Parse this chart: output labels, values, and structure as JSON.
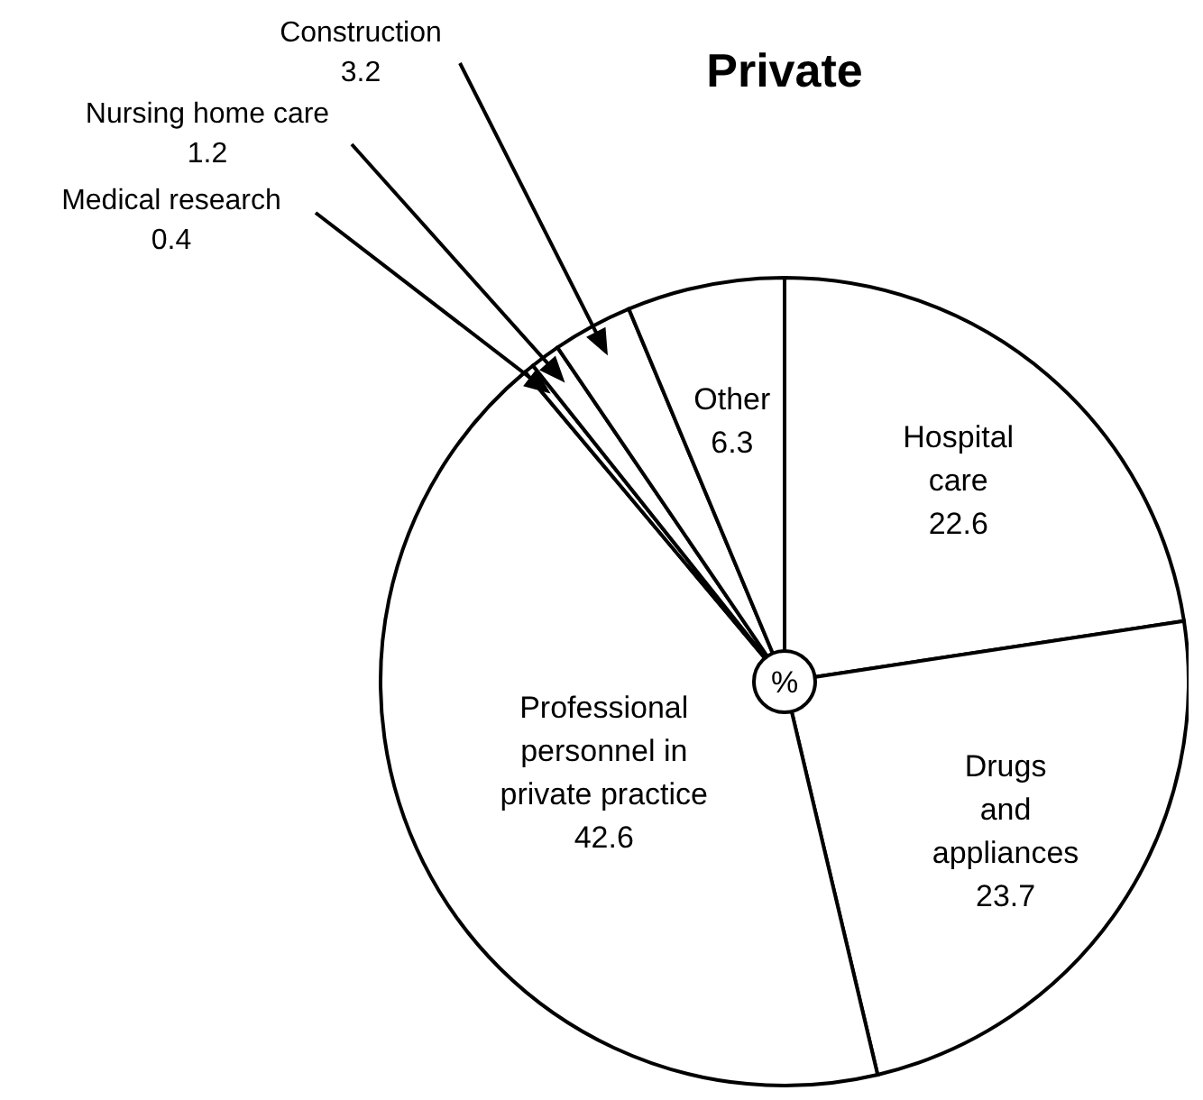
{
  "chart_data": {
    "type": "pie",
    "title": "Private",
    "categories": [
      "Hospital care",
      "Drugs and appliances",
      "Professional personnel in private practice",
      "Medical research",
      "Nursing home care",
      "Construction",
      "Other"
    ],
    "values": [
      22.6,
      23.7,
      42.6,
      0.4,
      1.2,
      3.2,
      6.3
    ],
    "colors": [
      "#ffffff",
      "#ffffff",
      "#ffffff",
      "#ffffff",
      "#ffffff",
      "#ffffff",
      "#ffffff"
    ],
    "data_labels": true,
    "annotations": [
      "%"
    ]
  }
}
